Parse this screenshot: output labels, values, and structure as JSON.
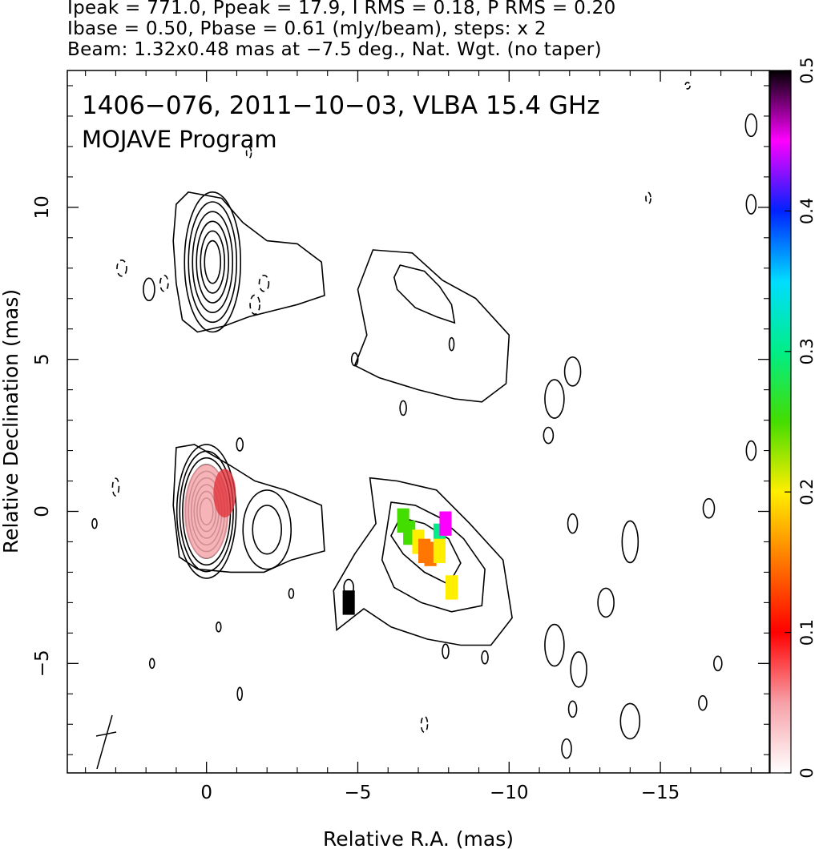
{
  "header": {
    "line1": "Ipeak = 771.0, Ppeak = 17.9, I RMS = 0.18, P RMS = 0.20",
    "line2": "Ibase = 0.50, Pbase = 0.61 (mJy/beam), steps: x 2",
    "line3": "Beam: 1.32x0.48 mas at −7.5 deg., Nat. Wgt. (no taper)"
  },
  "chart_data": {
    "type": "heatmap",
    "title": "1406−076, 2011−10−03, VLBA 15.4 GHz",
    "subtitle": "MOJAVE Program",
    "xlabel": "Relative R.A. (mas)",
    "ylabel": "Relative Declination (mas)",
    "xlim": [
      4.6,
      -18.6
    ],
    "ylim": [
      -8.6,
      14.5
    ],
    "x_ticks": [
      0,
      -5,
      -10,
      -15
    ],
    "x_tick_labels": [
      "0",
      "−5",
      "−10",
      "−15"
    ],
    "y_ticks": [
      -5,
      0,
      5,
      10
    ],
    "y_tick_labels": [
      "−5",
      "0",
      "5",
      "10"
    ],
    "colorbar": {
      "range": [
        0,
        0.5
      ],
      "ticks": [
        0,
        0.1,
        0.2,
        0.3,
        0.4,
        0.5
      ],
      "tick_labels": [
        "0",
        "0.1",
        "0.2",
        "0.3",
        "0.4",
        "0.5"
      ]
    },
    "panels": [
      {
        "name": "upper",
        "core": {
          "ra": -0.2,
          "dec": 8.2,
          "contour_levels": 6,
          "hatched": true
        },
        "jet_feature": {
          "ra": -7.3,
          "dec": 7.2,
          "hatched": true
        }
      },
      {
        "name": "lower",
        "core": {
          "ra": 0.0,
          "dec": 0.0,
          "contour_levels": 9
        },
        "jet_feature": {
          "ra": -7.5,
          "dec": -1.5
        },
        "polarization_pixels": [
          {
            "ra": -6.5,
            "dec": -0.3,
            "value": 0.24
          },
          {
            "ra": -6.7,
            "dec": -0.7,
            "value": 0.22
          },
          {
            "ra": -7.0,
            "dec": -1.0,
            "value": 0.17
          },
          {
            "ra": -7.2,
            "dec": -1.3,
            "value": 0.12
          },
          {
            "ra": -7.4,
            "dec": -1.4,
            "value": 0.13
          },
          {
            "ra": -7.7,
            "dec": -0.8,
            "value": 0.3
          },
          {
            "ra": -7.9,
            "dec": -0.4,
            "value": 0.42
          },
          {
            "ra": -7.7,
            "dec": -1.3,
            "value": 0.2
          },
          {
            "ra": -8.1,
            "dec": -2.5,
            "value": 0.19
          },
          {
            "ra": -4.7,
            "dec": -3.0,
            "value": 0.5
          }
        ]
      }
    ]
  }
}
